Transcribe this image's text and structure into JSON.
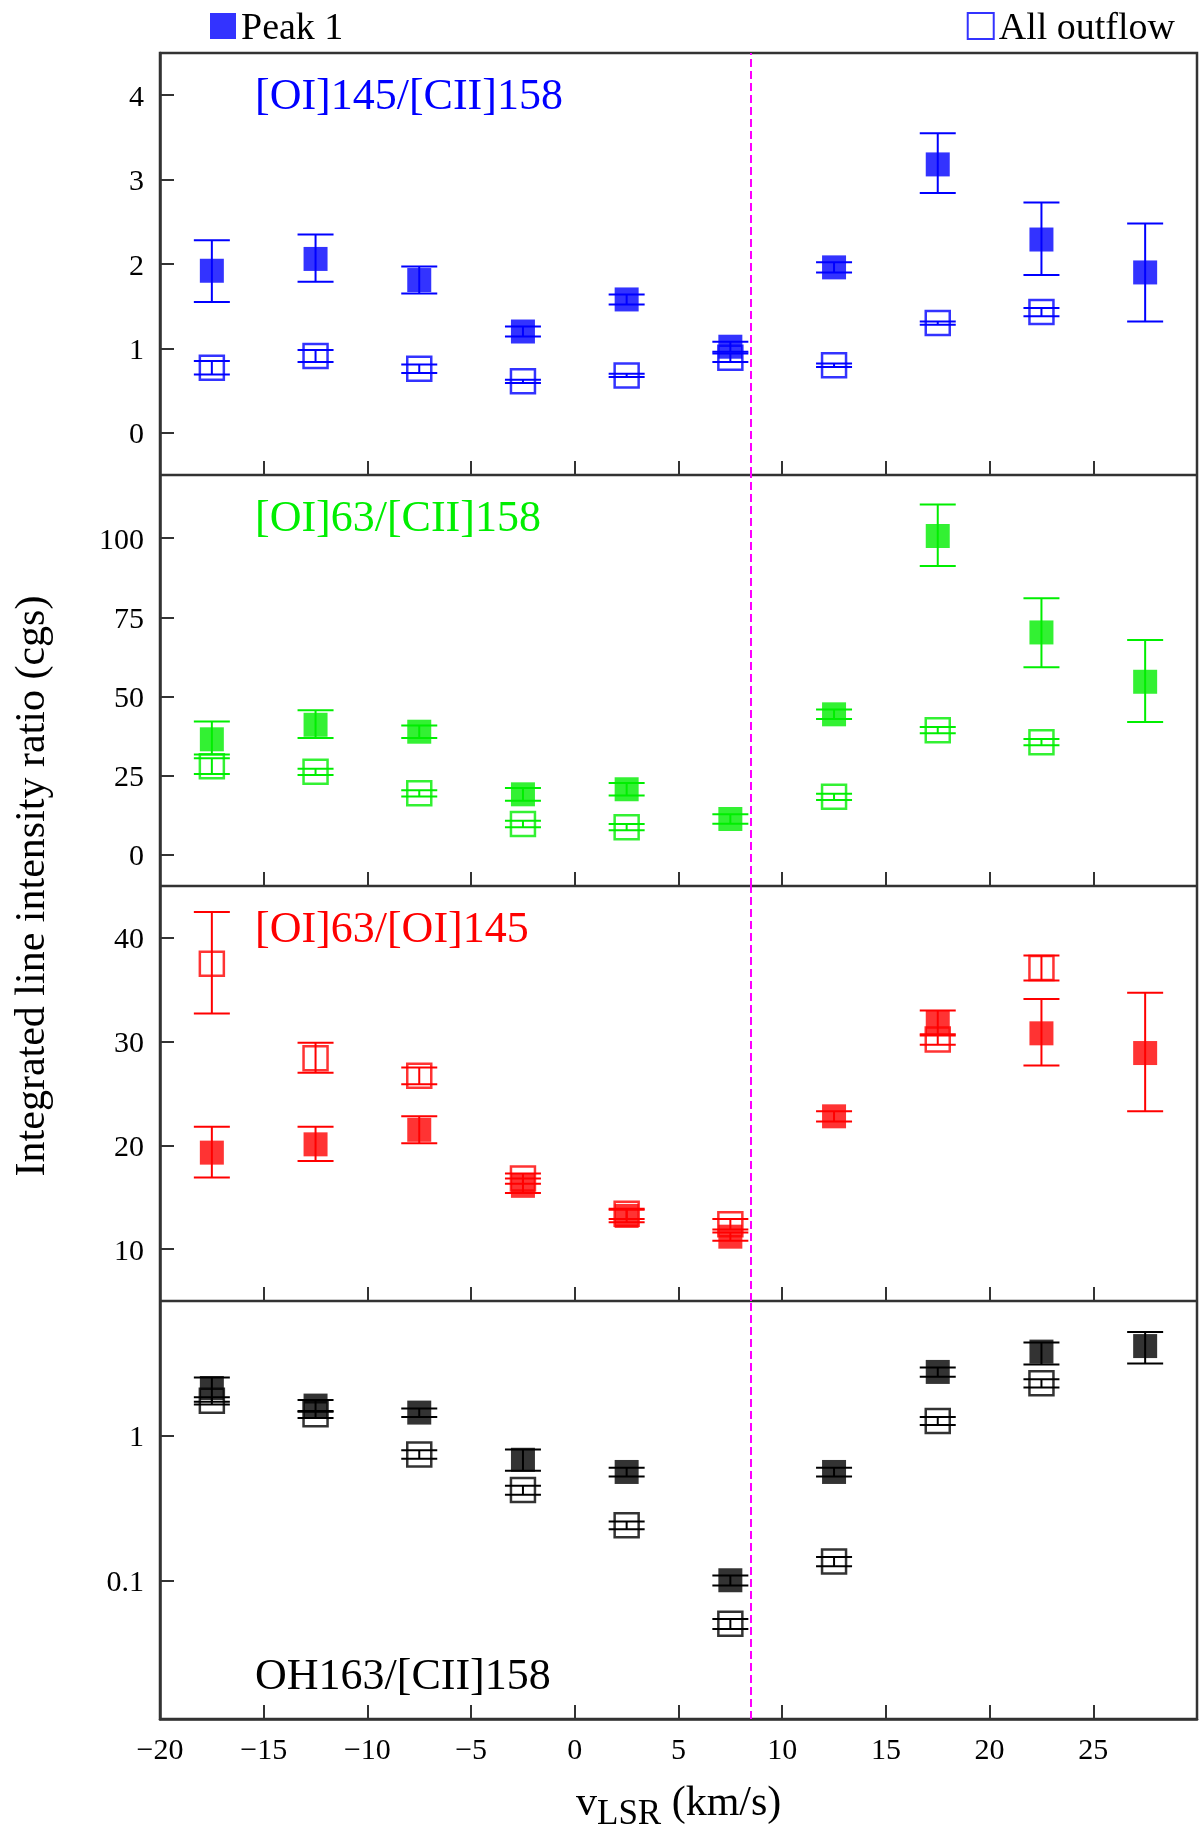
{
  "chart_data": [
    {
      "type": "scatter",
      "title": "[OI]145/[CII]158",
      "ylabel": "Integrated line intensity ratio (cgs)",
      "marker": "square",
      "legend": "top",
      "tick_labels": "y",
      "x": [
        -17.5,
        -12.5,
        -7.5,
        -2.5,
        2.5,
        7.5,
        12.5,
        17.5,
        22.5,
        27.5
      ],
      "xlim": [
        -20,
        30
      ],
      "xticks": [
        -20,
        -15,
        -10,
        -5,
        0,
        5,
        10,
        15,
        20,
        25
      ],
      "ylim": [
        -0.5,
        4.5
      ],
      "yticks": [
        0,
        1,
        2,
        3,
        4
      ],
      "ref_lines": [
        {
          "axis": "x",
          "value": 8.5,
          "color": "#ff00ff",
          "line_style": "dashed"
        }
      ],
      "series": [
        {
          "name": "Peak 1",
          "color": "#0000ff",
          "values": [
            1.92,
            2.06,
            1.81,
            1.2,
            1.58,
            1.02,
            1.96,
            3.18,
            2.29,
            1.9
          ],
          "errors": [
            [
              1.55,
              2.28
            ],
            [
              1.79,
              2.35
            ],
            0.16,
            0.06,
            0.06,
            0.06,
            0.06,
            [
              2.84,
              3.55
            ],
            [
              1.87,
              2.73
            ],
            [
              1.32,
              2.48
            ]
          ]
        },
        {
          "name": "All outflow",
          "color": "#0000ff",
          "values": [
            0.77,
            0.91,
            0.76,
            0.61,
            0.68,
            0.89,
            0.8,
            1.3,
            1.43,
            null
          ],
          "errors": [
            0.08,
            0.07,
            0.05,
            0.02,
            0.02,
            0.05,
            0.02,
            0.02,
            0.05,
            null
          ]
        }
      ]
    },
    {
      "type": "scatter",
      "title": "[OI]63/[CII]158",
      "marker": "square",
      "tick_labels": "y",
      "x": [
        -17.5,
        -12.5,
        -7.5,
        -2.5,
        2.5,
        7.5,
        12.5,
        17.5,
        22.5,
        27.5
      ],
      "xlim": [
        -20,
        30
      ],
      "xticks": [
        -20,
        -15,
        -10,
        -5,
        0,
        5,
        10,
        15,
        20,
        25
      ],
      "ylim": [
        -10,
        120
      ],
      "yticks": [
        0,
        25,
        50,
        75,
        100
      ],
      "ref_lines": [
        {
          "axis": "x",
          "value": 8.5,
          "color": "#ff00ff",
          "line_style": "dashed"
        }
      ],
      "series": [
        {
          "color": "#00ee00",
          "values": [
            36.4,
            41,
            38.8,
            19,
            20.6,
            11.2,
            44.3,
            100.7,
            70.2,
            54.6
          ],
          "errors": [
            [
              31.6,
              42
            ],
            [
              36.8,
              45.6
            ],
            2,
            2,
            2,
            1.5,
            1.5,
            [
              91.2,
              110.7
            ],
            [
              59.2,
              81
            ],
            [
              41.9,
              67.8
            ]
          ]
        },
        {
          "color": "#00ee00",
          "values": [
            27.9,
            26.1,
            19.3,
            9.6,
            8.6,
            null,
            18.2,
            39.3,
            35.5,
            null
          ],
          "errors": [
            2.5,
            1,
            1,
            1,
            1,
            null,
            1,
            1,
            1,
            null
          ]
        }
      ]
    },
    {
      "type": "scatter",
      "title": "[OI]63/[OI]145",
      "marker": "square",
      "tick_labels": "y",
      "x": [
        -17.5,
        -12.5,
        -7.5,
        -2.5,
        2.5,
        7.5,
        12.5,
        17.5,
        22.5,
        27.5
      ],
      "xlim": [
        -20,
        30
      ],
      "xticks": [
        -20,
        -15,
        -10,
        -5,
        0,
        5,
        10,
        15,
        20,
        25
      ],
      "ylim": [
        5,
        45
      ],
      "yticks": [
        10,
        20,
        30,
        40
      ],
      "ref_lines": [
        {
          "axis": "x",
          "value": 8.5,
          "color": "#ff00ff",
          "line_style": "dashed"
        }
      ],
      "series": [
        {
          "color": "#ff0000",
          "values": [
            19.3,
            20.1,
            21.5,
            16.1,
            13.2,
            11.2,
            22.8,
            31.8,
            30.8,
            28.9
          ],
          "errors": [
            [
              16.9,
              21.8
            ],
            [
              18.5,
              21.8
            ],
            [
              20.2,
              22.8
            ],
            0.7,
            0.6,
            0.4,
            0.5,
            1.2,
            [
              27.7,
              34.1
            ],
            [
              23.3,
              34.7
            ]
          ]
        },
        {
          "color": "#ff0000",
          "values": [
            37.5,
            28.4,
            26.7,
            16.8,
            13.4,
            12.4,
            null,
            30.2,
            37.1,
            null
          ],
          "errors": [
            [
              32.7,
              42.5
            ],
            [
              27,
              29.9
            ],
            0.8,
            0.5,
            0.5,
            0.5,
            null,
            0.5,
            1.2,
            null
          ]
        }
      ]
    },
    {
      "type": "scatter",
      "title": "OH163/[CII]158",
      "xlabel": "v$_{LSR}$ (km/s)",
      "marker": "square",
      "log": true,
      "x": [
        -17.5,
        -12.5,
        -7.5,
        -2.5,
        2.5,
        7.5,
        12.5,
        17.5,
        22.5,
        27.5
      ],
      "xlim": [
        -20,
        30
      ],
      "xticks": [
        -20,
        -15,
        -10,
        -5,
        0,
        5,
        10,
        15,
        20,
        25
      ],
      "ylim": [
        0.011,
        8.5
      ],
      "yticks": [
        0.1,
        1
      ],
      "ref_lines": [
        {
          "axis": "x",
          "value": 8.5,
          "color": "#ff00ff",
          "line_style": "dashed"
        }
      ],
      "series": [
        {
          "color": "#000000",
          "values": [
            2.13,
            1.61,
            1.44,
            0.68,
            0.56,
            0.1,
            0.56,
            2.75,
            3.8,
            4.15
          ],
          "errors": [
            [
              1.71,
              2.52
            ],
            0.15,
            0.1,
            [
              0.57,
              0.8
            ],
            0.04,
            0.008,
            0.04,
            0.2,
            [
              3.1,
              4.4
            ],
            [
              3.15,
              5.2
            ]
          ]
        },
        {
          "color": "#000000",
          "values": [
            1.74,
            1.4,
            0.74,
            0.42,
            0.24,
            0.05,
            0.135,
            1.26,
            2.3,
            null
          ],
          "errors": [
            0.1,
            0.08,
            0.05,
            0.03,
            0.015,
            0.004,
            0.01,
            0.08,
            0.15,
            null
          ]
        }
      ]
    }
  ]
}
